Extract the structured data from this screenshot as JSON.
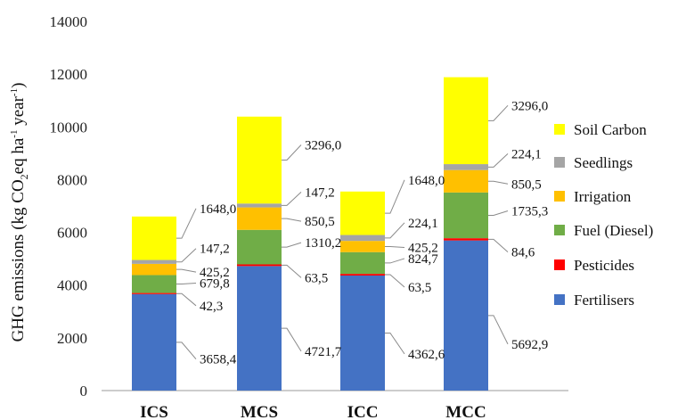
{
  "chart_data": {
    "type": "bar",
    "stacked": true,
    "title": "",
    "xlabel": "",
    "ylabel": "GHG emissions (kg CO",
    "ylabel_sub": "2",
    "ylabel_mid": "eq ha",
    "ylabel_sup1": "-1",
    "ylabel_mid2": " year",
    "ylabel_sup2": "-1",
    "ylabel_end": ")",
    "ylim": [
      0,
      14000
    ],
    "yticks": [
      0,
      2000,
      4000,
      6000,
      8000,
      10000,
      12000,
      14000
    ],
    "ytick_labels": [
      "0",
      "2000",
      "4000",
      "6000",
      "8000",
      "10000",
      "12000",
      "14000"
    ],
    "categories": [
      "ICS",
      "MCS",
      "ICC",
      "MCC"
    ],
    "legend_position": "right",
    "series": [
      {
        "name": "Fertilisers",
        "color": "#4472C4",
        "values": [
          3658.4,
          4721.7,
          4362.6,
          5692.9
        ],
        "labels": [
          "3658,4",
          "4721,7",
          "4362,6",
          "5692,9"
        ]
      },
      {
        "name": "Pesticides",
        "color": "#FF0000",
        "values": [
          42.3,
          63.5,
          63.5,
          84.6
        ],
        "labels": [
          "42,3",
          "63,5",
          "63,5",
          "84,6"
        ]
      },
      {
        "name": "Fuel (Diesel)",
        "color": "#70AD47",
        "values": [
          679.8,
          1310.2,
          824.7,
          1735.3
        ],
        "labels": [
          "679,8",
          "1310,2",
          "824,7",
          "1735,3"
        ]
      },
      {
        "name": "Irrigation",
        "color": "#FFC000",
        "values": [
          425.2,
          850.5,
          425.2,
          850.5
        ],
        "labels": [
          "425,2",
          "850,5",
          "425,2",
          "850,5"
        ]
      },
      {
        "name": "Seedlings",
        "color": "#A5A5A5",
        "values": [
          147.2,
          147.2,
          224.1,
          224.1
        ],
        "labels": [
          "147,2",
          "147,2",
          "224,1",
          "224,1"
        ]
      },
      {
        "name": "Soil Carbon",
        "color": "#FFFF00",
        "values": [
          1648.0,
          3296.0,
          1648.0,
          3296.0
        ],
        "labels": [
          "1648,0",
          "3296,0",
          "1648,0",
          "3296,0"
        ]
      }
    ]
  }
}
